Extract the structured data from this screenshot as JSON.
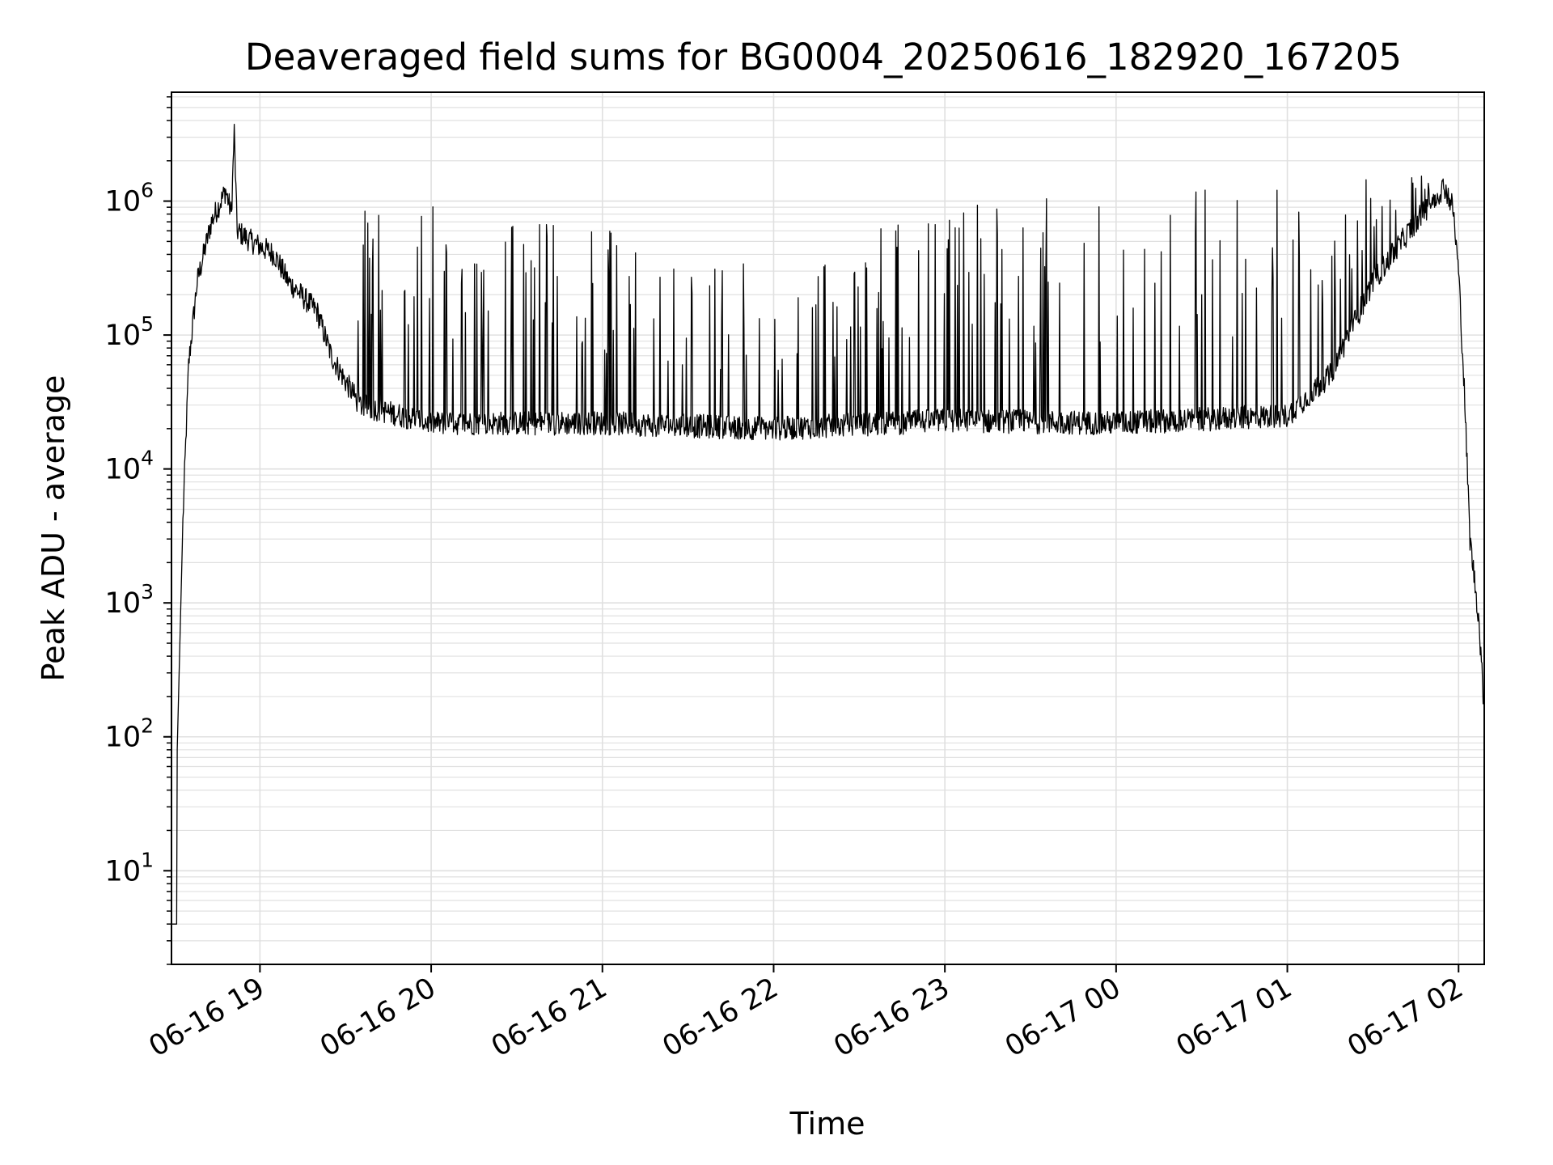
{
  "chart_data": {
    "type": "line",
    "title": "Deaveraged field sums for BG0004_20250616_182920_167205",
    "xlabel": "Time",
    "ylabel": "Peak ADU - average",
    "yscale": "log",
    "grid": true,
    "line_color": "#000000",
    "grid_color": "#e0e0e0",
    "xlim": [
      "06-16 18:29",
      "06-17 02:09"
    ],
    "ylim": [
      2,
      6500000
    ],
    "x_ticks": [
      {
        "label": "06-16 19",
        "value": "06-16 19:00"
      },
      {
        "label": "06-16 20",
        "value": "06-16 20:00"
      },
      {
        "label": "06-16 21",
        "value": "06-16 21:00"
      },
      {
        "label": "06-16 22",
        "value": "06-16 22:00"
      },
      {
        "label": "06-16 23",
        "value": "06-16 23:00"
      },
      {
        "label": "06-17 00",
        "value": "06-17 00:00"
      },
      {
        "label": "06-17 01",
        "value": "06-17 01:00"
      },
      {
        "label": "06-17 02",
        "value": "06-17 02:00"
      }
    ],
    "y_ticks": [
      {
        "base": "10",
        "exp": "1",
        "value": 10
      },
      {
        "base": "10",
        "exp": "2",
        "value": 100
      },
      {
        "base": "10",
        "exp": "3",
        "value": 1000
      },
      {
        "base": "10",
        "exp": "4",
        "value": 10000
      },
      {
        "base": "10",
        "exp": "5",
        "value": 100000
      },
      {
        "base": "10",
        "exp": "6",
        "value": 1000000
      }
    ],
    "series": [
      {
        "envelope_points": [
          {
            "x": "06-16 18:29",
            "y": 4
          },
          {
            "x": "06-16 18:31",
            "y": 4
          },
          {
            "x": "06-16 18:31",
            "y": 80
          },
          {
            "x": "06-16 18:33",
            "y": 4000
          },
          {
            "x": "06-16 18:35",
            "y": 60000
          },
          {
            "x": "06-16 18:38",
            "y": 250000
          },
          {
            "x": "06-16 18:43",
            "y": 700000
          },
          {
            "x": "06-16 18:48",
            "y": 1200000
          },
          {
            "x": "06-16 18:50",
            "y": 800000
          },
          {
            "x": "06-16 18:51",
            "y": 3300000
          },
          {
            "x": "06-16 18:52",
            "y": 600000
          },
          {
            "x": "06-16 18:57",
            "y": 500000
          },
          {
            "x": "06-16 19:05",
            "y": 400000
          },
          {
            "x": "06-16 19:10",
            "y": 250000
          },
          {
            "x": "06-16 19:20",
            "y": 150000
          },
          {
            "x": "06-16 19:25",
            "y": 70000
          },
          {
            "x": "06-16 19:30",
            "y": 45000
          },
          {
            "x": "06-16 19:35",
            "y": 30000
          },
          {
            "x": "06-16 20:00",
            "y": 22000
          },
          {
            "x": "06-16 21:00",
            "y": 22000
          },
          {
            "x": "06-16 22:00",
            "y": 20000
          },
          {
            "x": "06-16 23:00",
            "y": 23000
          },
          {
            "x": "06-17 00:00",
            "y": 22000
          },
          {
            "x": "06-17 01:00",
            "y": 25000
          },
          {
            "x": "06-17 01:15",
            "y": 50000
          },
          {
            "x": "06-17 01:30",
            "y": 250000
          },
          {
            "x": "06-17 01:45",
            "y": 700000
          },
          {
            "x": "06-17 01:55",
            "y": 1300000
          },
          {
            "x": "06-17 01:58",
            "y": 900000
          },
          {
            "x": "06-17 02:00",
            "y": 300000
          },
          {
            "x": "06-17 02:02",
            "y": 40000
          },
          {
            "x": "06-17 02:04",
            "y": 3000
          },
          {
            "x": "06-17 02:07",
            "y": 800
          },
          {
            "x": "06-17 02:09",
            "y": 150
          }
        ],
        "spike_top": [
          {
            "x": "06-16 19:35",
            "y": 1000000
          },
          {
            "x": "06-16 20:00",
            "y": 1000000
          },
          {
            "x": "06-16 21:00",
            "y": 700000
          },
          {
            "x": "06-16 22:00",
            "y": 300000
          },
          {
            "x": "06-16 23:00",
            "y": 1000000
          },
          {
            "x": "06-17 00:00",
            "y": 1200000
          },
          {
            "x": "06-17 01:00",
            "y": 1300000
          },
          {
            "x": "06-17 01:40",
            "y": 1600000
          }
        ]
      }
    ]
  }
}
